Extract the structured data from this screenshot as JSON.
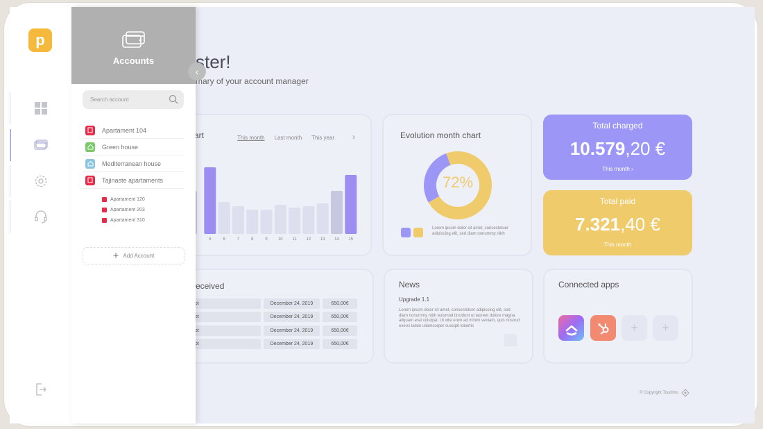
{
  "brand": {
    "logo_letter": "p"
  },
  "rail": {
    "items": [
      {
        "name": "dashboard-icon"
      },
      {
        "name": "credit-card-icon",
        "active": true
      },
      {
        "name": "gear-icon"
      },
      {
        "name": "headset-icon"
      }
    ],
    "logout_icon": "logout-icon"
  },
  "panel": {
    "title": "Accounts",
    "search_placeholder": "Search account",
    "collapse_glyph": "‹",
    "accounts": [
      {
        "label": "Apartament 104",
        "color": "#e8294a"
      },
      {
        "label": "Green house",
        "color": "#7ac96a"
      },
      {
        "label": "Mediterranean house",
        "color": "#8cc5e0"
      },
      {
        "label": "Tajinaste apartaments",
        "color": "#e8294a"
      }
    ],
    "sub_accounts": [
      "Apartament 120",
      "Apartament 203",
      "Apartament 310"
    ],
    "add_label": "Add Account"
  },
  "greeting": {
    "title": "ster!",
    "subtitle": "mary of your account manager"
  },
  "bar_chart": {
    "title": "art",
    "tabs": [
      "This month",
      "Last month",
      "This year"
    ]
  },
  "chart_data": [
    {
      "type": "bar",
      "title": "art",
      "categories": [
        "",
        "5",
        "6",
        "7",
        "8",
        "9",
        "10",
        "11",
        "12",
        "13",
        "14",
        "15"
      ],
      "values": [
        62,
        96,
        46,
        40,
        35,
        35,
        42,
        38,
        40,
        44,
        62,
        85
      ],
      "highlight": [
        false,
        true,
        false,
        false,
        false,
        false,
        false,
        false,
        false,
        false,
        false,
        true
      ],
      "colors": {
        "normal": "#dddfee",
        "light": "#c7c7df",
        "highlight": "#9c8ef0"
      },
      "tick_labels": [
        "",
        "5",
        "6",
        "7",
        "8",
        "9",
        "10",
        "11",
        "12",
        "13",
        "14",
        "15"
      ]
    },
    {
      "type": "pie",
      "title": "Evolution month chart",
      "values": [
        72,
        28
      ],
      "colors": [
        "#f0cb6c",
        "#9c97f7"
      ],
      "center_label": "72%"
    }
  ],
  "donut": {
    "title": "Evolution month chart",
    "center": "72%",
    "legend_text": "Lorem ipsum dolor sit amet, consectetuer adipiscing elit, sed diam nonummy nibh"
  },
  "stats": {
    "charged": {
      "title": "Total charged",
      "int": "10.579",
      "dec": ",20 €",
      "period": "This month  ›"
    },
    "paid": {
      "title": "Total paid",
      "int": "7.321",
      "dec": ",40 €",
      "period": "This month"
    }
  },
  "received": {
    "title": "eceived",
    "rows": [
      {
        "a": "ept",
        "date": "December 24, 2019",
        "amount": "650,00€"
      },
      {
        "a": "ept",
        "date": "December 24, 2019",
        "amount": "650,00€"
      },
      {
        "a": "ept",
        "date": "December 24, 2019",
        "amount": "650,00€"
      },
      {
        "a": "ept",
        "date": "December 24, 2019",
        "amount": "650,00€"
      }
    ]
  },
  "news": {
    "title": "News",
    "headline": "Upgrade 1.1",
    "body": "Lorem ipsum dolor sit amet, consectetuer adipiscing elit, sed diam nonummy nibh euismod tincidunt ut laoreet dolore magna aliquam erat volutpat. Ut wisi enim ad minim veniam, quis nostrud exerci tation ullamcorper suscipit lobortis"
  },
  "apps": {
    "title": "Connected apps",
    "items": [
      "clickup-icon",
      "hubspot-icon",
      "add-app-icon",
      "add-app-icon"
    ],
    "add_glyph": "+"
  },
  "footer": {
    "copyright": "© Copyright Toudimo"
  }
}
